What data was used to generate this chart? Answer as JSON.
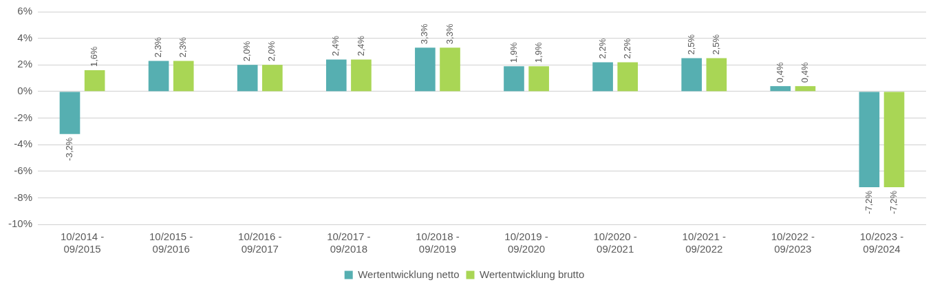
{
  "chart_data": {
    "type": "bar",
    "categories": [
      "10/2014 - 09/2015",
      "10/2015 - 09/2016",
      "10/2016 - 09/2017",
      "10/2017 - 09/2018",
      "10/2018 - 09/2019",
      "10/2019 - 09/2020",
      "10/2020 - 09/2021",
      "10/2021 - 09/2022",
      "10/2022 - 09/2023",
      "10/2023 - 09/2024"
    ],
    "series": [
      {
        "name": "Wertentwicklung netto",
        "color": "#56afb1",
        "values": [
          -3.2,
          2.3,
          2.0,
          2.4,
          3.3,
          1.9,
          2.2,
          2.5,
          0.4,
          -7.2
        ],
        "value_labels": [
          "-3,2%",
          "2,3%",
          "2,0%",
          "2,4%",
          "3,3%",
          "1,9%",
          "2,2%",
          "2,5%",
          "0,4%",
          "-7,2%"
        ]
      },
      {
        "name": "Wertentwicklung brutto",
        "color": "#a9d655",
        "values": [
          1.6,
          2.3,
          2.0,
          2.4,
          3.3,
          1.9,
          2.2,
          2.5,
          0.4,
          -7.2
        ],
        "value_labels": [
          "1,6%",
          "2,3%",
          "2,0%",
          "2,4%",
          "3,3%",
          "1,9%",
          "2,2%",
          "2,5%",
          "0,4%",
          "-7,2%"
        ]
      }
    ],
    "ylim": [
      -10,
      6
    ],
    "yticks": [
      {
        "value": -10,
        "label": "-10%"
      },
      {
        "value": -8,
        "label": "-8%"
      },
      {
        "value": -6,
        "label": "-6%"
      },
      {
        "value": -4,
        "label": "-4%"
      },
      {
        "value": -2,
        "label": "-2%"
      },
      {
        "value": 0,
        "label": "0%"
      },
      {
        "value": 2,
        "label": "2%"
      },
      {
        "value": 4,
        "label": "4%"
      },
      {
        "value": 6,
        "label": "6%"
      }
    ],
    "grid": "y",
    "legend": "bottom"
  }
}
